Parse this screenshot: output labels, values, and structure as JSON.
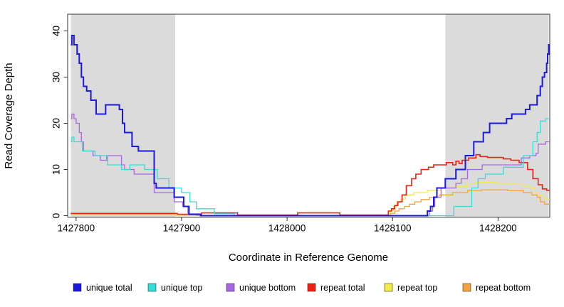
{
  "figure": {
    "background": "#ffffff",
    "frame_color": "#333333",
    "shaded_band_color": "#dbdbdb"
  },
  "chart_data": {
    "type": "line",
    "subtype": "step",
    "title": "",
    "xlabel": "Coordinate in Reference Genome",
    "ylabel": "Read Coverage Depth",
    "xlim": [
      1427792,
      1428249
    ],
    "ylim": [
      -0.4,
      43.6
    ],
    "x_ticks": [
      1427800,
      1427900,
      1428000,
      1428100,
      1428200
    ],
    "y_ticks": [
      0,
      10,
      20,
      30,
      40
    ],
    "grid": false,
    "legend_position": "bottom",
    "shaded_regions": [
      {
        "name": "left-repeat-flank",
        "from": 1427795,
        "to": 1427894
      },
      {
        "name": "right-repeat-flank",
        "from": 1428150,
        "to": 1428248
      }
    ],
    "series": [
      {
        "name": "unique total",
        "color": "#1b18e0",
        "line_width": 2,
        "points": [
          [
            1427795,
            37
          ],
          [
            1427796,
            39
          ],
          [
            1427798,
            37
          ],
          [
            1427801,
            35
          ],
          [
            1427803,
            33
          ],
          [
            1427805,
            30
          ],
          [
            1427807,
            28
          ],
          [
            1427810,
            27
          ],
          [
            1427814,
            25
          ],
          [
            1427819,
            22
          ],
          [
            1427828,
            24
          ],
          [
            1427841,
            23
          ],
          [
            1427844,
            20
          ],
          [
            1427846,
            18
          ],
          [
            1427853,
            15
          ],
          [
            1427859,
            14
          ],
          [
            1427874,
            7
          ],
          [
            1427876,
            6
          ],
          [
            1427893,
            4
          ],
          [
            1427902,
            2
          ],
          [
            1427907,
            0.3
          ],
          [
            1427918,
            0
          ],
          [
            1428133,
            1
          ],
          [
            1428136,
            2
          ],
          [
            1428139,
            4
          ],
          [
            1428142,
            6
          ],
          [
            1428150,
            8
          ],
          [
            1428160,
            10
          ],
          [
            1428169,
            13
          ],
          [
            1428177,
            16
          ],
          [
            1428186,
            18
          ],
          [
            1428192,
            20
          ],
          [
            1428208,
            21
          ],
          [
            1428213,
            22
          ],
          [
            1428226,
            23
          ],
          [
            1428230,
            24
          ],
          [
            1428237,
            26
          ],
          [
            1428240,
            28
          ],
          [
            1428242,
            30
          ],
          [
            1428244,
            31
          ],
          [
            1428246,
            33
          ],
          [
            1428247,
            35
          ],
          [
            1428248,
            37
          ]
        ]
      },
      {
        "name": "unique top",
        "color": "#35dcd8",
        "line_width": 1.3,
        "points": [
          [
            1427795,
            16
          ],
          [
            1427796,
            17
          ],
          [
            1427798,
            16
          ],
          [
            1427806,
            14
          ],
          [
            1427818,
            13
          ],
          [
            1427830,
            11
          ],
          [
            1427843,
            10
          ],
          [
            1427851,
            11
          ],
          [
            1427865,
            10
          ],
          [
            1427877,
            8
          ],
          [
            1427888,
            6
          ],
          [
            1427900,
            5
          ],
          [
            1427908,
            3
          ],
          [
            1427914,
            1.5
          ],
          [
            1427931,
            0.4
          ],
          [
            1427950,
            0
          ],
          [
            1428158,
            2
          ],
          [
            1428175,
            6
          ],
          [
            1428181,
            8
          ],
          [
            1428188,
            9
          ],
          [
            1428205,
            10.5
          ],
          [
            1428224,
            13
          ],
          [
            1428233,
            16
          ],
          [
            1428237,
            18
          ],
          [
            1428240,
            20.5
          ],
          [
            1428245,
            21
          ]
        ]
      },
      {
        "name": "unique bottom",
        "color": "#a866e0",
        "line_width": 1.3,
        "points": [
          [
            1427795,
            21
          ],
          [
            1427796,
            22
          ],
          [
            1427798,
            21
          ],
          [
            1427800,
            20
          ],
          [
            1427803,
            18
          ],
          [
            1427805,
            16
          ],
          [
            1427807,
            14
          ],
          [
            1427816,
            13
          ],
          [
            1427823,
            12
          ],
          [
            1427829,
            13
          ],
          [
            1427843,
            11
          ],
          [
            1427846,
            10
          ],
          [
            1427855,
            9
          ],
          [
            1427874,
            5
          ],
          [
            1427893,
            3
          ],
          [
            1427901,
            2
          ],
          [
            1427906,
            0.4
          ],
          [
            1427918,
            0
          ],
          [
            1428135,
            1
          ],
          [
            1428138,
            2
          ],
          [
            1428140,
            4
          ],
          [
            1428146,
            6
          ],
          [
            1428160,
            7
          ],
          [
            1428165,
            8
          ],
          [
            1428171,
            10
          ],
          [
            1428185,
            11
          ],
          [
            1428222,
            12.5
          ],
          [
            1428230,
            13
          ],
          [
            1428236,
            13.5
          ],
          [
            1428238,
            15.5
          ],
          [
            1428245,
            16
          ]
        ]
      },
      {
        "name": "repeat total",
        "color": "#ee2012",
        "line_width": 1.6,
        "points": [
          [
            1427795,
            0.5
          ],
          [
            1427896,
            0.3
          ],
          [
            1427919,
            0.6
          ],
          [
            1427953,
            0.15
          ],
          [
            1428010,
            0.6
          ],
          [
            1428050,
            0.15
          ],
          [
            1428096,
            1
          ],
          [
            1428099,
            1.5
          ],
          [
            1428102,
            2.2
          ],
          [
            1428105,
            3
          ],
          [
            1428109,
            4.5
          ],
          [
            1428113,
            6.5
          ],
          [
            1428118,
            8
          ],
          [
            1428122,
            9
          ],
          [
            1428127,
            10
          ],
          [
            1428134,
            10.5
          ],
          [
            1428139,
            11
          ],
          [
            1428151,
            11.5
          ],
          [
            1428157,
            11
          ],
          [
            1428160,
            11.8
          ],
          [
            1428163,
            11.3
          ],
          [
            1428166,
            12
          ],
          [
            1428172,
            12.5
          ],
          [
            1428179,
            13.2
          ],
          [
            1428183,
            12.8
          ],
          [
            1428190,
            12.6
          ],
          [
            1428205,
            12.3
          ],
          [
            1428212,
            12
          ],
          [
            1428220,
            11.5
          ],
          [
            1428228,
            10
          ],
          [
            1428233,
            8
          ],
          [
            1428238,
            6.7
          ],
          [
            1428242,
            5.8
          ],
          [
            1428246,
            5.5
          ]
        ]
      },
      {
        "name": "repeat top",
        "color": "#f2e94b",
        "line_width": 1.3,
        "points": [
          [
            1427795,
            0.4
          ],
          [
            1427894,
            0
          ],
          [
            1427913,
            0.4
          ],
          [
            1427918,
            0
          ],
          [
            1428096,
            0.6
          ],
          [
            1428098,
            1.2
          ],
          [
            1428101,
            2
          ],
          [
            1428104,
            3
          ],
          [
            1428108,
            3.6
          ],
          [
            1428112,
            4.5
          ],
          [
            1428120,
            5
          ],
          [
            1428133,
            5.5
          ],
          [
            1428146,
            6
          ],
          [
            1428159,
            6.3
          ],
          [
            1428171,
            6.8
          ],
          [
            1428179,
            7.2
          ],
          [
            1428199,
            7
          ],
          [
            1428214,
            6.8
          ],
          [
            1428224,
            6.4
          ],
          [
            1428231,
            6
          ],
          [
            1428235,
            5
          ],
          [
            1428239,
            4.4
          ],
          [
            1428242,
            4
          ],
          [
            1428245,
            3.6
          ]
        ]
      },
      {
        "name": "repeat bottom",
        "color": "#f2a440",
        "line_width": 1.3,
        "points": [
          [
            1427795,
            0.3
          ],
          [
            1427894,
            0
          ],
          [
            1428098,
            0.5
          ],
          [
            1428102,
            1
          ],
          [
            1428106,
            1.5
          ],
          [
            1428111,
            2
          ],
          [
            1428116,
            2.5
          ],
          [
            1428121,
            3
          ],
          [
            1428127,
            3.5
          ],
          [
            1428135,
            4
          ],
          [
            1428144,
            4.5
          ],
          [
            1428157,
            5
          ],
          [
            1428171,
            5.4
          ],
          [
            1428184,
            5.6
          ],
          [
            1428209,
            5.4
          ],
          [
            1428224,
            5
          ],
          [
            1428232,
            4.5
          ],
          [
            1428237,
            4
          ],
          [
            1428240,
            3
          ],
          [
            1428244,
            2.5
          ]
        ]
      }
    ]
  },
  "legend": {
    "items": [
      {
        "label": "unique total",
        "color": "#1b18e0"
      },
      {
        "label": "unique top",
        "color": "#35dcd8"
      },
      {
        "label": "unique bottom",
        "color": "#a866e0"
      },
      {
        "label": "repeat total",
        "color": "#ee2012"
      },
      {
        "label": "repeat top",
        "color": "#f2e94b"
      },
      {
        "label": "repeat bottom",
        "color": "#f2a440"
      }
    ]
  }
}
